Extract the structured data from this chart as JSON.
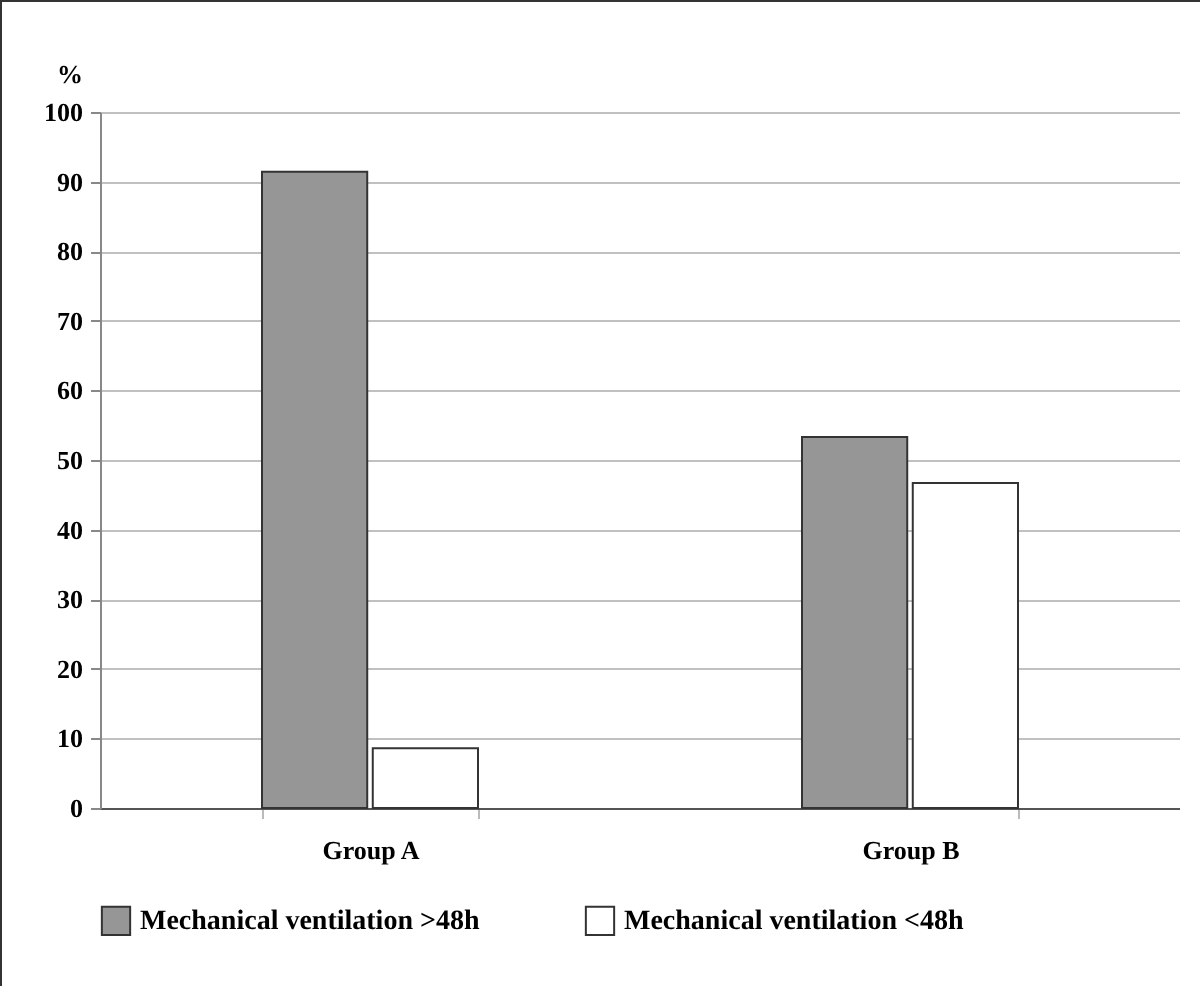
{
  "chart_data": {
    "type": "bar",
    "ylabel": "%",
    "categories": [
      "Group A",
      "Group B"
    ],
    "series": [
      {
        "name": "Mechanical ventilation >48h",
        "color": "#969696",
        "values": [
          91.4,
          53.3
        ]
      },
      {
        "name": "Mechanical ventilation <48h",
        "color": "#ffffff",
        "values": [
          8.6,
          46.7
        ]
      }
    ],
    "ylim": [
      0,
      100
    ],
    "yticks": [
      0,
      10,
      20,
      30,
      40,
      50,
      60,
      70,
      80,
      90,
      100
    ],
    "grid": "y",
    "legend": "bottom"
  }
}
